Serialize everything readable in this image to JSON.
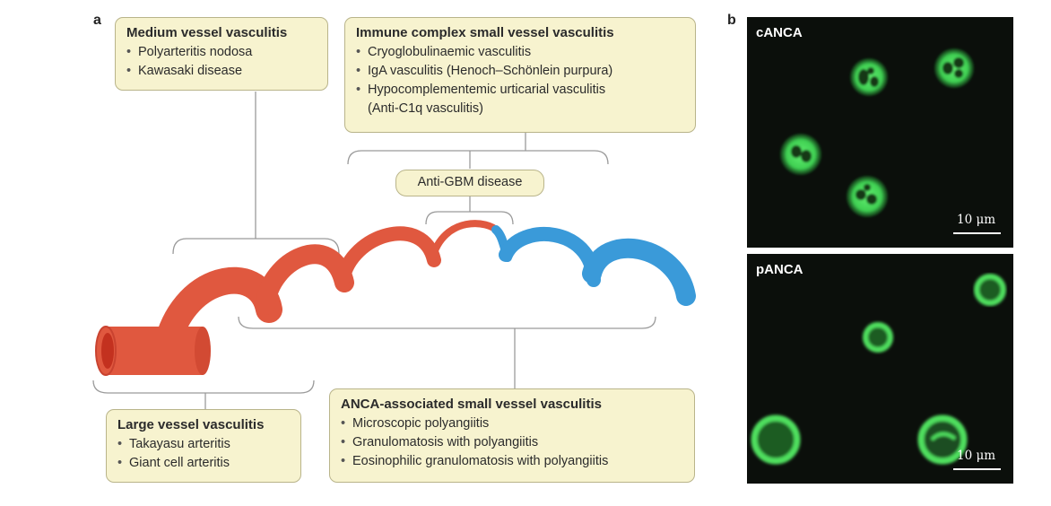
{
  "panel_a_letter": "a",
  "panel_b_letter": "b",
  "medium": {
    "title": "Medium vessel vasculitis",
    "items": [
      "Polyarteritis nodosa",
      "Kawasaki disease"
    ]
  },
  "immune": {
    "title": "Immune complex small vessel vasculitis",
    "items": [
      "Cryoglobulinaemic vasculitis",
      "IgA vasculitis (Henoch–Schönlein purpura)",
      "Hypocomplementemic urticarial vasculitis (Anti-C1q vasculitis)"
    ]
  },
  "antigbm": "Anti-GBM disease",
  "large": {
    "title": "Large vessel vasculitis",
    "items": [
      "Takayasu arteritis",
      "Giant cell arteritis"
    ]
  },
  "anca": {
    "title": "ANCA-associated small vessel vasculitis",
    "items": [
      "Microscopic polyangiitis",
      "Granulomatosis with polyangiitis",
      "Eosinophilic granulomatosis with polyangiitis"
    ]
  },
  "micro_top": {
    "label": "cANCA",
    "scale": "10 μm"
  },
  "micro_bottom": {
    "label": "pANCA",
    "scale": "10 μm"
  },
  "colors": {
    "artery": "#e0583f",
    "artery_dark": "#c94330",
    "vein": "#3a9ad9",
    "box_fill": "#f7f3cf",
    "box_border": "#b9b48a",
    "fluor": "#46d85a"
  }
}
